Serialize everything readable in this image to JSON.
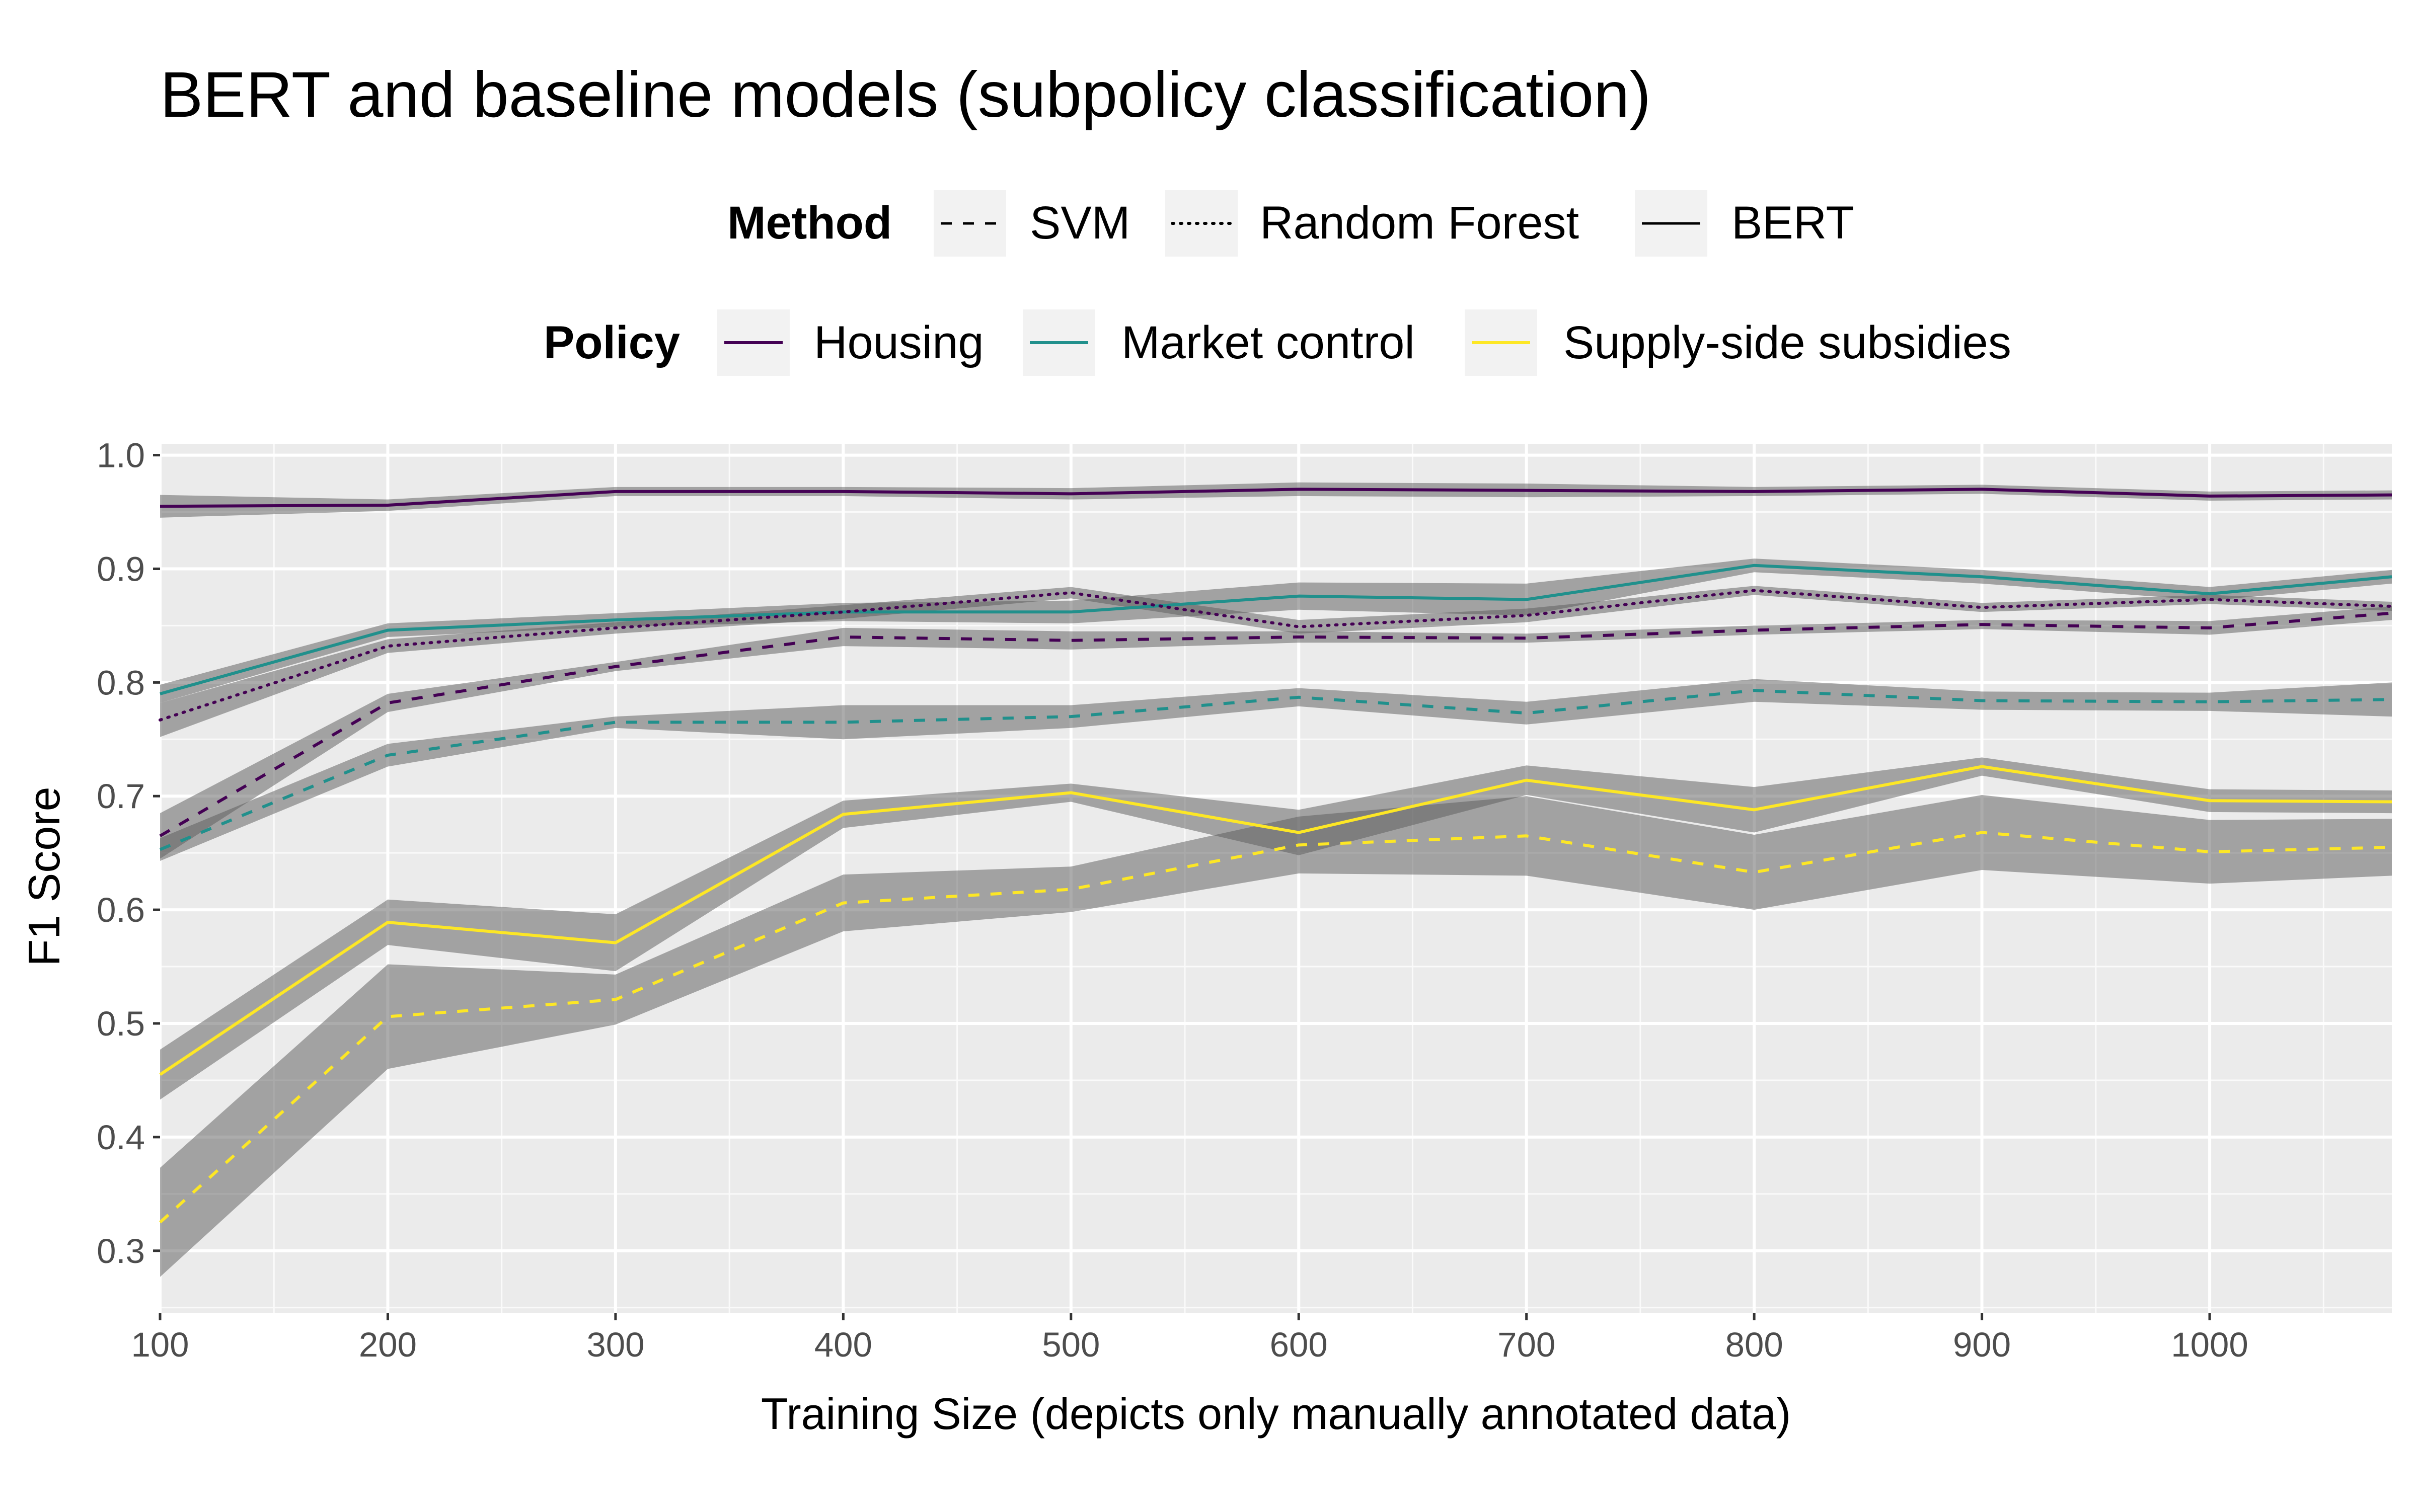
{
  "chart_data": {
    "type": "line",
    "title": "BERT and baseline models (subpolicy classification)",
    "xlabel": "Training Size (depicts only manually annotated data)",
    "ylabel": "F1 Score",
    "xlim": [
      100,
      1080
    ],
    "ylim": [
      0.245,
      1.01
    ],
    "x_ticks": [
      100,
      200,
      300,
      400,
      500,
      600,
      700,
      800,
      900,
      1000
    ],
    "x_tick_labels": [
      "100",
      "200",
      "300",
      "400",
      "500",
      "600",
      "700",
      "800",
      "900",
      "1000"
    ],
    "y_ticks": [
      0.3,
      0.4,
      0.5,
      0.6,
      0.7,
      0.8,
      0.9,
      1.0
    ],
    "y_tick_labels": [
      "0.3",
      "0.4",
      "0.5",
      "0.6",
      "0.7",
      "0.8",
      "0.9",
      "1.0"
    ],
    "grid": true,
    "legend_position": "top",
    "legends": [
      {
        "title": "Method",
        "items": [
          {
            "label": "SVM",
            "linetype": "dashed"
          },
          {
            "label": "Random Forest",
            "linetype": "dotted"
          },
          {
            "label": "BERT",
            "linetype": "solid"
          }
        ]
      },
      {
        "title": "Policy",
        "items": [
          {
            "label": "Housing",
            "color": "#440154"
          },
          {
            "label": "Market control",
            "color": "#21908C"
          },
          {
            "label": "Supply-side subsidies",
            "color": "#FDE725"
          }
        ]
      }
    ],
    "x": [
      100,
      200,
      300,
      400,
      500,
      600,
      700,
      800,
      900,
      1000,
      1080
    ],
    "series": [
      {
        "policy": "Housing",
        "method": "BERT",
        "color": "#440154",
        "linetype": "solid",
        "values": [
          0.955,
          0.956,
          0.968,
          0.968,
          0.966,
          0.97,
          0.969,
          0.968,
          0.97,
          0.964,
          0.965
        ],
        "band": [
          0.01,
          0.005,
          0.004,
          0.004,
          0.005,
          0.006,
          0.006,
          0.004,
          0.004,
          0.004,
          0.004
        ]
      },
      {
        "policy": "Market control",
        "method": "BERT",
        "color": "#21908C",
        "linetype": "solid",
        "values": [
          0.79,
          0.846,
          0.855,
          0.862,
          0.862,
          0.876,
          0.873,
          0.903,
          0.893,
          0.878,
          0.893
        ],
        "band": [
          0.008,
          0.006,
          0.006,
          0.008,
          0.01,
          0.012,
          0.014,
          0.006,
          0.006,
          0.006,
          0.006
        ]
      },
      {
        "policy": "Supply-side subsidies",
        "method": "BERT",
        "color": "#FDE725",
        "linetype": "solid",
        "values": [
          0.455,
          0.589,
          0.571,
          0.684,
          0.703,
          0.668,
          0.714,
          0.688,
          0.726,
          0.696,
          0.695
        ],
        "band": [
          0.022,
          0.02,
          0.025,
          0.012,
          0.008,
          0.02,
          0.013,
          0.02,
          0.008,
          0.01,
          0.01
        ]
      },
      {
        "policy": "Housing",
        "method": "SVM",
        "color": "#440154",
        "linetype": "dashed",
        "values": [
          0.665,
          0.782,
          0.814,
          0.84,
          0.837,
          0.84,
          0.839,
          0.846,
          0.851,
          0.848,
          0.861
        ],
        "band": [
          0.02,
          0.008,
          0.004,
          0.008,
          0.008,
          0.005,
          0.004,
          0.004,
          0.004,
          0.006,
          0.006
        ]
      },
      {
        "policy": "Market control",
        "method": "SVM",
        "color": "#21908C",
        "linetype": "dashed",
        "values": [
          0.653,
          0.736,
          0.765,
          0.765,
          0.77,
          0.787,
          0.773,
          0.793,
          0.784,
          0.783,
          0.785
        ],
        "band": [
          0.01,
          0.01,
          0.005,
          0.015,
          0.01,
          0.008,
          0.01,
          0.01,
          0.008,
          0.008,
          0.015
        ]
      },
      {
        "policy": "Supply-side subsidies",
        "method": "SVM",
        "color": "#FDE725",
        "linetype": "dashed",
        "values": [
          0.325,
          0.506,
          0.521,
          0.606,
          0.618,
          0.657,
          0.665,
          0.633,
          0.668,
          0.651,
          0.655
        ],
        "band": [
          0.048,
          0.046,
          0.022,
          0.025,
          0.02,
          0.025,
          0.035,
          0.033,
          0.033,
          0.028,
          0.025
        ]
      },
      {
        "policy": "Housing",
        "method": "Random Forest",
        "color": "#440154",
        "linetype": "dotted",
        "values": [
          0.767,
          0.832,
          0.848,
          0.862,
          0.879,
          0.849,
          0.859,
          0.881,
          0.866,
          0.873,
          0.867
        ],
        "band": [
          0.015,
          0.006,
          0.005,
          0.006,
          0.005,
          0.006,
          0.006,
          0.004,
          0.004,
          0.004,
          0.004
        ]
      }
    ]
  }
}
